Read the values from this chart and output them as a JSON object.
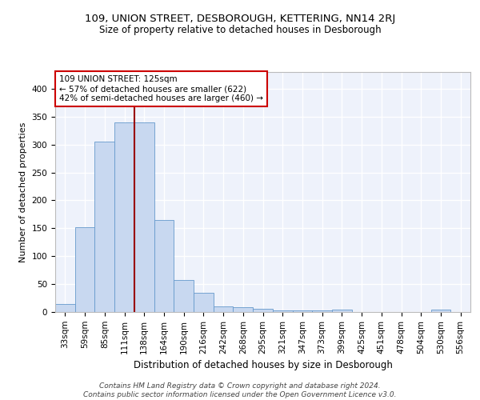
{
  "title1": "109, UNION STREET, DESBOROUGH, KETTERING, NN14 2RJ",
  "title2": "Size of property relative to detached houses in Desborough",
  "xlabel": "Distribution of detached houses by size in Desborough",
  "ylabel": "Number of detached properties",
  "footer1": "Contains HM Land Registry data © Crown copyright and database right 2024.",
  "footer2": "Contains public sector information licensed under the Open Government Licence v3.0.",
  "categories": [
    "33sqm",
    "59sqm",
    "85sqm",
    "111sqm",
    "138sqm",
    "164sqm",
    "190sqm",
    "216sqm",
    "242sqm",
    "268sqm",
    "295sqm",
    "321sqm",
    "347sqm",
    "373sqm",
    "399sqm",
    "425sqm",
    "451sqm",
    "478sqm",
    "504sqm",
    "530sqm",
    "556sqm"
  ],
  "values": [
    15,
    152,
    305,
    340,
    340,
    165,
    57,
    35,
    10,
    9,
    6,
    3,
    3,
    3,
    5,
    0,
    0,
    0,
    0,
    5,
    0
  ],
  "bar_color": "#c8d8f0",
  "bar_edge_color": "#6699cc",
  "background_color": "#eef2fb",
  "grid_color": "#ffffff",
  "vline_color": "#990000",
  "vline_x_index": 3.52,
  "annotation_text": "109 UNION STREET: 125sqm\n← 57% of detached houses are smaller (622)\n42% of semi-detached houses are larger (460) →",
  "annotation_box_facecolor": "#ffffff",
  "annotation_box_edgecolor": "#cc0000",
  "ylim_max": 430,
  "yticks": [
    0,
    50,
    100,
    150,
    200,
    250,
    300,
    350,
    400
  ],
  "title1_fontsize": 9.5,
  "title2_fontsize": 8.5,
  "xlabel_fontsize": 8.5,
  "ylabel_fontsize": 8,
  "tick_fontsize": 7.5,
  "annotation_fontsize": 7.5,
  "footer_fontsize": 6.5
}
